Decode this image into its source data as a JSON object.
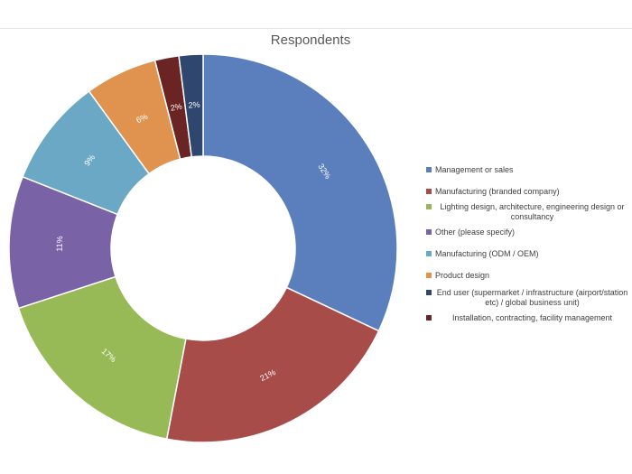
{
  "chart_data": {
    "type": "pie",
    "donut": true,
    "title": "Respondents",
    "legend_position": "right",
    "slices": [
      {
        "label": "Management or sales",
        "value": 32,
        "display": "32%",
        "color": "#5b7fbc"
      },
      {
        "label": "Manufacturing (branded company)",
        "value": 21,
        "display": "21%",
        "color": "#a84c4a"
      },
      {
        "label": "Lighting design, architecture, engineering design or consultancy",
        "value": 17,
        "display": "17%",
        "color": "#97ba57"
      },
      {
        "label": "Other (please specify)",
        "value": 11,
        "display": "11%",
        "color": "#7a62a6"
      },
      {
        "label": "Manufacturing (ODM / OEM)",
        "value": 9,
        "display": "9%",
        "color": "#6ba8c5"
      },
      {
        "label": "Product design",
        "value": 6,
        "display": "6%",
        "color": "#e0934e"
      },
      {
        "label": "Installation, contracting, facility management",
        "value": 2,
        "display": "2%",
        "color": "#6b2424"
      },
      {
        "label": "End user (supermarket / infrastructure (airport/station etc) / global business unit)",
        "value": 2,
        "display": "2%",
        "color": "#2f466e"
      }
    ],
    "legend_order": [
      "Management or sales",
      "Manufacturing (branded company)",
      "Lighting design, architecture, engineering design or consultancy",
      "Other (please specify)",
      "Manufacturing (ODM / OEM)",
      "Product design",
      "End user (supermarket / infrastructure (airport/station etc) / global business unit)",
      "Installation, contracting, facility management"
    ]
  }
}
